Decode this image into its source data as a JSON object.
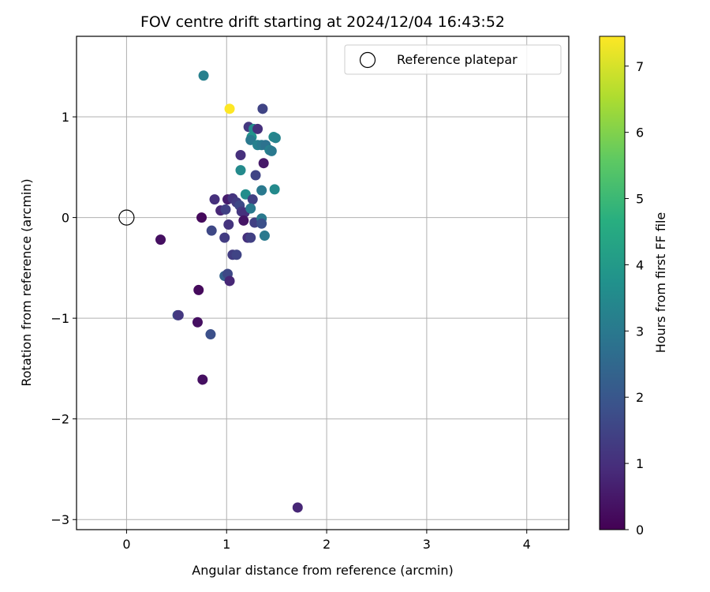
{
  "chart_data": {
    "type": "scatter",
    "title": "FOV centre drift starting at 2024/12/04 16:43:52",
    "xlabel": "Angular distance from reference (arcmin)",
    "ylabel": "Rotation from reference (arcmin)",
    "xlim": [
      -0.5,
      4.42
    ],
    "ylim": [
      -3.1,
      1.8
    ],
    "xticks": [
      0,
      1,
      2,
      3,
      4
    ],
    "yticks": [
      -3,
      -2,
      -1,
      0,
      1
    ],
    "grid": true,
    "legend": {
      "position": "top-right",
      "entries": [
        {
          "label": "Reference platepar",
          "marker": "open-circle",
          "x": 0,
          "y": 0
        }
      ]
    },
    "colorbar": {
      "label": "Hours from first FF file",
      "colormap": "viridis",
      "min": 0,
      "max": 7.45,
      "ticks": [
        0,
        1,
        2,
        3,
        4,
        5,
        6,
        7
      ]
    },
    "points": [
      {
        "x": 0.77,
        "y": 1.41,
        "t": 3.2
      },
      {
        "x": 1.03,
        "y": 1.08,
        "t": 7.45
      },
      {
        "x": 1.36,
        "y": 1.08,
        "t": 1.5
      },
      {
        "x": 1.22,
        "y": 0.9,
        "t": 1.2
      },
      {
        "x": 1.27,
        "y": 0.88,
        "t": 3.5
      },
      {
        "x": 1.31,
        "y": 0.88,
        "t": 1.0
      },
      {
        "x": 1.25,
        "y": 0.8,
        "t": 3.8
      },
      {
        "x": 1.24,
        "y": 0.77,
        "t": 3.0
      },
      {
        "x": 1.47,
        "y": 0.8,
        "t": 3.5
      },
      {
        "x": 1.49,
        "y": 0.79,
        "t": 3.3
      },
      {
        "x": 1.31,
        "y": 0.72,
        "t": 3.2
      },
      {
        "x": 1.35,
        "y": 0.72,
        "t": 3.0
      },
      {
        "x": 1.39,
        "y": 0.72,
        "t": 2.8
      },
      {
        "x": 1.43,
        "y": 0.67,
        "t": 3.2
      },
      {
        "x": 1.45,
        "y": 0.66,
        "t": 3.0
      },
      {
        "x": 1.14,
        "y": 0.62,
        "t": 1.0
      },
      {
        "x": 1.37,
        "y": 0.54,
        "t": 0.5
      },
      {
        "x": 1.14,
        "y": 0.47,
        "t": 3.5
      },
      {
        "x": 1.29,
        "y": 0.42,
        "t": 1.5
      },
      {
        "x": 1.48,
        "y": 0.28,
        "t": 3.5
      },
      {
        "x": 1.35,
        "y": 0.27,
        "t": 3.0
      },
      {
        "x": 1.19,
        "y": 0.23,
        "t": 3.6
      },
      {
        "x": 0.88,
        "y": 0.18,
        "t": 1.0
      },
      {
        "x": 1.01,
        "y": 0.18,
        "t": 0.6
      },
      {
        "x": 1.06,
        "y": 0.19,
        "t": 1.1
      },
      {
        "x": 1.1,
        "y": 0.15,
        "t": 1.3
      },
      {
        "x": 1.13,
        "y": 0.12,
        "t": 1.6
      },
      {
        "x": 1.26,
        "y": 0.18,
        "t": 1.4
      },
      {
        "x": 0.94,
        "y": 0.07,
        "t": 0.8
      },
      {
        "x": 0.99,
        "y": 0.08,
        "t": 1.4
      },
      {
        "x": 1.15,
        "y": 0.06,
        "t": 1.2
      },
      {
        "x": 1.18,
        "y": 0.05,
        "t": 1.0
      },
      {
        "x": 1.24,
        "y": 0.09,
        "t": 3.0
      },
      {
        "x": 0.75,
        "y": 0.0,
        "t": 0.2
      },
      {
        "x": 1.17,
        "y": -0.03,
        "t": 0.4
      },
      {
        "x": 1.28,
        "y": -0.05,
        "t": 1.4
      },
      {
        "x": 1.35,
        "y": -0.01,
        "t": 3.0
      },
      {
        "x": 1.35,
        "y": -0.06,
        "t": 1.8
      },
      {
        "x": 1.02,
        "y": -0.07,
        "t": 1.1
      },
      {
        "x": 0.85,
        "y": -0.13,
        "t": 1.6
      },
      {
        "x": 0.98,
        "y": -0.2,
        "t": 1.3
      },
      {
        "x": 1.21,
        "y": -0.2,
        "t": 1.0
      },
      {
        "x": 1.24,
        "y": -0.2,
        "t": 1.4
      },
      {
        "x": 1.38,
        "y": -0.18,
        "t": 3.0
      },
      {
        "x": 0.34,
        "y": -0.22,
        "t": 0.3
      },
      {
        "x": 1.06,
        "y": -0.37,
        "t": 1.3
      },
      {
        "x": 1.1,
        "y": -0.37,
        "t": 1.5
      },
      {
        "x": 0.98,
        "y": -0.58,
        "t": 2.3
      },
      {
        "x": 1.01,
        "y": -0.56,
        "t": 1.6
      },
      {
        "x": 1.03,
        "y": -0.63,
        "t": 0.8
      },
      {
        "x": 0.72,
        "y": -0.72,
        "t": 0.2
      },
      {
        "x": 0.51,
        "y": -0.97,
        "t": 1.8
      },
      {
        "x": 0.52,
        "y": -0.97,
        "t": 1.2
      },
      {
        "x": 0.71,
        "y": -1.04,
        "t": 0.3
      },
      {
        "x": 0.84,
        "y": -1.16,
        "t": 1.8
      },
      {
        "x": 0.76,
        "y": -1.61,
        "t": 0.3
      },
      {
        "x": 1.71,
        "y": -2.88,
        "t": 0.8
      }
    ]
  }
}
